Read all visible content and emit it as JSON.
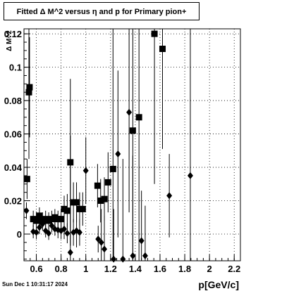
{
  "title": "Fitted Δ M^2 versus η and p for Primary pion+",
  "timestamp": "Sun Dec  1 10:31:17 2024",
  "chart_data": {
    "type": "scatter",
    "title": "Fitted Δ M^2 versus η and p for Primary pion+",
    "xlabel": "p[GeV/c]",
    "ylabel": "Δ M^2",
    "xlim": [
      0.5,
      2.25
    ],
    "ylim": [
      -0.016,
      0.123
    ],
    "grid": true,
    "x_ticks": [
      "0.6",
      "0.8",
      "1",
      "1.2",
      "1.4",
      "1.6",
      "1.8",
      "2",
      "2.2"
    ],
    "x_tick_values": [
      0.6,
      0.8,
      1.0,
      1.2,
      1.4,
      1.6,
      1.8,
      2.0,
      2.2
    ],
    "y_ticks": [
      "0",
      "0.02",
      "0.04",
      "0.06",
      "0.08",
      "0.1",
      "0.12"
    ],
    "y_tick_values": [
      0,
      0.02,
      0.04,
      0.06,
      0.08,
      0.1,
      0.12
    ],
    "series": [
      {
        "marker": "square",
        "points": [
          {
            "x": 0.525,
            "y": 0.033,
            "err": 0.012
          },
          {
            "x": 0.54,
            "y": 0.085,
            "err": 0.04
          },
          {
            "x": 0.545,
            "y": 0.088,
            "err": 0.03
          },
          {
            "x": 0.575,
            "y": 0.009,
            "err": 0.005
          },
          {
            "x": 0.6,
            "y": 0.008,
            "err": 0.005
          },
          {
            "x": 0.625,
            "y": 0.011,
            "err": 0.005
          },
          {
            "x": 0.65,
            "y": 0.008,
            "err": 0.005
          },
          {
            "x": 0.675,
            "y": 0.009,
            "err": 0.005
          },
          {
            "x": 0.7,
            "y": 0.008,
            "err": 0.005
          },
          {
            "x": 0.725,
            "y": 0.009,
            "err": 0.005
          },
          {
            "x": 0.75,
            "y": 0.01,
            "err": 0.005
          },
          {
            "x": 0.775,
            "y": 0.009,
            "err": 0.005
          },
          {
            "x": 0.8,
            "y": 0.009,
            "err": 0.006
          },
          {
            "x": 0.825,
            "y": 0.015,
            "err": 0.008
          },
          {
            "x": 0.85,
            "y": 0.014,
            "err": 0.01
          },
          {
            "x": 0.875,
            "y": 0.043,
            "err": 0.05
          },
          {
            "x": 0.9,
            "y": 0.019,
            "err": 0.012
          },
          {
            "x": 0.925,
            "y": 0.019,
            "err": 0.012
          },
          {
            "x": 0.95,
            "y": 0.015,
            "err": 0.01
          },
          {
            "x": 0.975,
            "y": 0.015,
            "err": 0.01
          },
          {
            "x": 1.095,
            "y": 0.029,
            "err": 0.013
          },
          {
            "x": 1.12,
            "y": 0.02,
            "err": 0.013
          },
          {
            "x": 1.15,
            "y": 0.021,
            "err": 0.013
          },
          {
            "x": 1.18,
            "y": 0.031,
            "err": 0.018
          },
          {
            "x": 1.22,
            "y": 0.039,
            "err": 0.09
          },
          {
            "x": 1.38,
            "y": 0.062,
            "err": 0.09
          },
          {
            "x": 1.43,
            "y": 0.07,
            "err": 0.09
          },
          {
            "x": 1.555,
            "y": 0.12,
            "err": 0.09
          },
          {
            "x": 1.62,
            "y": 0.111,
            "err": 0.06
          }
        ]
      },
      {
        "marker": "diamond",
        "points": [
          {
            "x": 0.52,
            "y": 0.014,
            "err": 0.005
          },
          {
            "x": 0.575,
            "y": 0.0015,
            "err": 0.004
          },
          {
            "x": 0.6,
            "y": 0.001,
            "err": 0.004
          },
          {
            "x": 0.625,
            "y": 0.004,
            "err": 0.004
          },
          {
            "x": 0.65,
            "y": 0.006,
            "err": 0.004
          },
          {
            "x": 0.675,
            "y": 0.002,
            "err": 0.004
          },
          {
            "x": 0.7,
            "y": 0.0005,
            "err": 0.004
          },
          {
            "x": 0.725,
            "y": 0.005,
            "err": 0.004
          },
          {
            "x": 0.75,
            "y": 0.003,
            "err": 0.004
          },
          {
            "x": 0.775,
            "y": 0.0025,
            "err": 0.005
          },
          {
            "x": 0.8,
            "y": 0.002,
            "err": 0.005
          },
          {
            "x": 0.825,
            "y": 0.003,
            "err": 0.006
          },
          {
            "x": 0.85,
            "y": 0.0005,
            "err": 0.006
          },
          {
            "x": 0.875,
            "y": -0.011,
            "err": 0.07
          },
          {
            "x": 0.9,
            "y": 0.001,
            "err": 0.008
          },
          {
            "x": 0.925,
            "y": 0.002,
            "err": 0.01
          },
          {
            "x": 0.95,
            "y": 0.001,
            "err": 0.008
          },
          {
            "x": 1.0,
            "y": 0.038,
            "err": 0.02
          },
          {
            "x": 1.1,
            "y": -0.003,
            "err": 0.008
          },
          {
            "x": 1.125,
            "y": -0.005,
            "err": 0.02
          },
          {
            "x": 1.15,
            "y": -0.009,
            "err": 0.02
          },
          {
            "x": 1.225,
            "y": -0.015,
            "err": 0.03
          },
          {
            "x": 1.26,
            "y": 0.048,
            "err": 0.05
          },
          {
            "x": 1.3,
            "y": -0.015,
            "err": 0.06
          },
          {
            "x": 1.35,
            "y": 0.073,
            "err": 0.06
          },
          {
            "x": 1.38,
            "y": -0.013,
            "err": 0.06
          },
          {
            "x": 1.45,
            "y": -0.004,
            "err": 0.03
          },
          {
            "x": 1.48,
            "y": -0.013,
            "err": 0.03
          },
          {
            "x": 1.675,
            "y": 0.023,
            "err": 0.025
          },
          {
            "x": 1.845,
            "y": 0.035,
            "err": 0.09
          }
        ]
      }
    ]
  }
}
